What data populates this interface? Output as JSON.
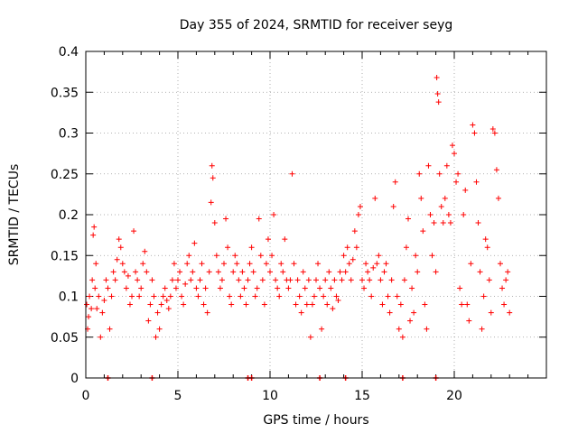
{
  "chart_data": {
    "type": "scatter",
    "title": "Day 355 of 2024, SRMTID for receiver seyg",
    "xlabel": "GPS time / hours",
    "ylabel": "SRMTID / TECUs",
    "xlim": [
      0,
      25
    ],
    "ylim": [
      0,
      0.4
    ],
    "x_ticks": [
      0,
      5,
      10,
      15,
      20
    ],
    "x_tick_labels": [
      "0",
      "5",
      "10",
      "15",
      "20"
    ],
    "y_ticks": [
      0,
      0.05,
      0.1,
      0.15,
      0.2,
      0.25,
      0.3,
      0.35,
      0.4
    ],
    "y_tick_labels": [
      "0",
      "0.05",
      "0.1",
      "0.15",
      "0.2",
      "0.25",
      "0.3",
      "0.35",
      "0.4"
    ],
    "grid": true,
    "marker": "+",
    "series": [
      {
        "name": "SRMTID",
        "color": "#ff0000",
        "points": [
          [
            0.05,
            0.09
          ],
          [
            0.1,
            0.06
          ],
          [
            0.15,
            0.075
          ],
          [
            0.2,
            0.1
          ],
          [
            0.3,
            0.085
          ],
          [
            0.35,
            0.12
          ],
          [
            0.4,
            0.175
          ],
          [
            0.45,
            0.185
          ],
          [
            0.5,
            0.11
          ],
          [
            0.55,
            0.14
          ],
          [
            0.6,
            0.085
          ],
          [
            0.7,
            0.1
          ],
          [
            0.8,
            0.05
          ],
          [
            0.9,
            0.08
          ],
          [
            1.0,
            0.095
          ],
          [
            1.1,
            0.12
          ],
          [
            1.2,
            0.11
          ],
          [
            1.3,
            0.06
          ],
          [
            1.4,
            0.1
          ],
          [
            1.5,
            0.13
          ],
          [
            1.6,
            0.12
          ],
          [
            1.7,
            0.145
          ],
          [
            1.8,
            0.17
          ],
          [
            1.9,
            0.16
          ],
          [
            2.0,
            0.14
          ],
          [
            2.1,
            0.13
          ],
          [
            2.2,
            0.11
          ],
          [
            2.3,
            0.125
          ],
          [
            2.4,
            0.09
          ],
          [
            2.5,
            0.1
          ],
          [
            2.6,
            0.18
          ],
          [
            2.7,
            0.13
          ],
          [
            2.8,
            0.12
          ],
          [
            2.9,
            0.1
          ],
          [
            3.0,
            0.11
          ],
          [
            3.1,
            0.14
          ],
          [
            3.2,
            0.155
          ],
          [
            3.3,
            0.13
          ],
          [
            3.4,
            0.07
          ],
          [
            3.5,
            0.09
          ],
          [
            3.6,
            0.12
          ],
          [
            3.7,
            0.1
          ],
          [
            3.8,
            0.05
          ],
          [
            3.9,
            0.08
          ],
          [
            4.0,
            0.06
          ],
          [
            4.1,
            0.09
          ],
          [
            4.2,
            0.1
          ],
          [
            4.3,
            0.11
          ],
          [
            4.4,
            0.095
          ],
          [
            4.5,
            0.085
          ],
          [
            4.6,
            0.1
          ],
          [
            4.7,
            0.12
          ],
          [
            4.8,
            0.14
          ],
          [
            4.9,
            0.11
          ],
          [
            5.0,
            0.12
          ],
          [
            5.1,
            0.13
          ],
          [
            5.2,
            0.1
          ],
          [
            5.3,
            0.09
          ],
          [
            5.4,
            0.115
          ],
          [
            5.5,
            0.14
          ],
          [
            5.6,
            0.15
          ],
          [
            5.7,
            0.12
          ],
          [
            5.8,
            0.13
          ],
          [
            5.9,
            0.165
          ],
          [
            6.0,
            0.11
          ],
          [
            6.1,
            0.1
          ],
          [
            6.2,
            0.12
          ],
          [
            6.3,
            0.14
          ],
          [
            6.4,
            0.09
          ],
          [
            6.5,
            0.11
          ],
          [
            6.6,
            0.08
          ],
          [
            6.7,
            0.13
          ],
          [
            6.8,
            0.215
          ],
          [
            6.85,
            0.26
          ],
          [
            6.9,
            0.245
          ],
          [
            7.0,
            0.19
          ],
          [
            7.1,
            0.15
          ],
          [
            7.2,
            0.13
          ],
          [
            7.3,
            0.11
          ],
          [
            7.4,
            0.12
          ],
          [
            7.5,
            0.14
          ],
          [
            7.6,
            0.195
          ],
          [
            7.7,
            0.16
          ],
          [
            7.8,
            0.1
          ],
          [
            7.9,
            0.09
          ],
          [
            8.0,
            0.13
          ],
          [
            8.1,
            0.15
          ],
          [
            8.2,
            0.14
          ],
          [
            8.3,
            0.12
          ],
          [
            8.4,
            0.1
          ],
          [
            8.5,
            0.13
          ],
          [
            8.6,
            0.11
          ],
          [
            8.7,
            0.09
          ],
          [
            8.8,
            0.12
          ],
          [
            8.9,
            0.14
          ],
          [
            9.0,
            0.16
          ],
          [
            9.1,
            0.13
          ],
          [
            9.2,
            0.1
          ],
          [
            9.3,
            0.11
          ],
          [
            9.4,
            0.195
          ],
          [
            9.5,
            0.15
          ],
          [
            9.6,
            0.12
          ],
          [
            9.7,
            0.09
          ],
          [
            9.8,
            0.14
          ],
          [
            9.9,
            0.17
          ],
          [
            10.0,
            0.13
          ],
          [
            10.1,
            0.15
          ],
          [
            10.2,
            0.2
          ],
          [
            10.3,
            0.12
          ],
          [
            10.4,
            0.11
          ],
          [
            10.5,
            0.1
          ],
          [
            10.6,
            0.14
          ],
          [
            10.7,
            0.13
          ],
          [
            10.8,
            0.17
          ],
          [
            10.9,
            0.12
          ],
          [
            11.0,
            0.11
          ],
          [
            11.1,
            0.12
          ],
          [
            11.2,
            0.25
          ],
          [
            11.3,
            0.14
          ],
          [
            11.4,
            0.09
          ],
          [
            11.5,
            0.12
          ],
          [
            11.6,
            0.1
          ],
          [
            11.7,
            0.08
          ],
          [
            11.8,
            0.13
          ],
          [
            11.9,
            0.11
          ],
          [
            12.0,
            0.09
          ],
          [
            12.1,
            0.12
          ],
          [
            12.2,
            0.05
          ],
          [
            12.3,
            0.09
          ],
          [
            12.4,
            0.1
          ],
          [
            12.5,
            0.12
          ],
          [
            12.6,
            0.14
          ],
          [
            12.7,
            0.11
          ],
          [
            12.8,
            0.06
          ],
          [
            12.9,
            0.1
          ],
          [
            13.0,
            0.12
          ],
          [
            13.1,
            0.09
          ],
          [
            13.2,
            0.13
          ],
          [
            13.3,
            0.11
          ],
          [
            13.4,
            0.085
          ],
          [
            13.5,
            0.12
          ],
          [
            13.6,
            0.1
          ],
          [
            13.7,
            0.095
          ],
          [
            13.8,
            0.13
          ],
          [
            13.9,
            0.12
          ],
          [
            14.0,
            0.15
          ],
          [
            14.1,
            0.13
          ],
          [
            14.2,
            0.16
          ],
          [
            14.3,
            0.14
          ],
          [
            14.4,
            0.12
          ],
          [
            14.5,
            0.145
          ],
          [
            14.6,
            0.18
          ],
          [
            14.7,
            0.16
          ],
          [
            14.8,
            0.2
          ],
          [
            14.9,
            0.21
          ],
          [
            15.0,
            0.12
          ],
          [
            15.1,
            0.11
          ],
          [
            15.2,
            0.14
          ],
          [
            15.3,
            0.13
          ],
          [
            15.4,
            0.12
          ],
          [
            15.5,
            0.1
          ],
          [
            15.6,
            0.135
          ],
          [
            15.7,
            0.22
          ],
          [
            15.8,
            0.14
          ],
          [
            15.9,
            0.15
          ],
          [
            16.0,
            0.12
          ],
          [
            16.1,
            0.09
          ],
          [
            16.2,
            0.13
          ],
          [
            16.3,
            0.14
          ],
          [
            16.4,
            0.1
          ],
          [
            16.5,
            0.08
          ],
          [
            16.6,
            0.12
          ],
          [
            16.7,
            0.21
          ],
          [
            16.8,
            0.24
          ],
          [
            16.9,
            0.1
          ],
          [
            17.0,
            0.06
          ],
          [
            17.1,
            0.09
          ],
          [
            17.2,
            0.05
          ],
          [
            17.3,
            0.12
          ],
          [
            17.4,
            0.16
          ],
          [
            17.5,
            0.195
          ],
          [
            17.6,
            0.07
          ],
          [
            17.7,
            0.11
          ],
          [
            17.8,
            0.08
          ],
          [
            17.9,
            0.15
          ],
          [
            18.0,
            0.13
          ],
          [
            18.1,
            0.25
          ],
          [
            18.2,
            0.22
          ],
          [
            18.3,
            0.18
          ],
          [
            18.4,
            0.09
          ],
          [
            18.5,
            0.06
          ],
          [
            18.6,
            0.26
          ],
          [
            18.7,
            0.2
          ],
          [
            18.8,
            0.15
          ],
          [
            18.9,
            0.19
          ],
          [
            19.0,
            0.13
          ],
          [
            19.05,
            0.368
          ],
          [
            19.1,
            0.348
          ],
          [
            19.15,
            0.338
          ],
          [
            19.2,
            0.25
          ],
          [
            19.3,
            0.21
          ],
          [
            19.4,
            0.19
          ],
          [
            19.5,
            0.22
          ],
          [
            19.6,
            0.26
          ],
          [
            19.7,
            0.2
          ],
          [
            19.8,
            0.19
          ],
          [
            19.9,
            0.285
          ],
          [
            20.0,
            0.275
          ],
          [
            20.1,
            0.24
          ],
          [
            20.2,
            0.25
          ],
          [
            20.3,
            0.11
          ],
          [
            20.4,
            0.09
          ],
          [
            20.5,
            0.2
          ],
          [
            20.6,
            0.23
          ],
          [
            20.7,
            0.09
          ],
          [
            20.8,
            0.07
          ],
          [
            20.9,
            0.14
          ],
          [
            21.0,
            0.31
          ],
          [
            21.1,
            0.3
          ],
          [
            21.2,
            0.24
          ],
          [
            21.3,
            0.19
          ],
          [
            21.4,
            0.13
          ],
          [
            21.5,
            0.06
          ],
          [
            21.6,
            0.1
          ],
          [
            21.7,
            0.17
          ],
          [
            21.8,
            0.16
          ],
          [
            21.9,
            0.12
          ],
          [
            22.0,
            0.08
          ],
          [
            22.1,
            0.305
          ],
          [
            22.2,
            0.3
          ],
          [
            22.3,
            0.255
          ],
          [
            22.4,
            0.22
          ],
          [
            22.5,
            0.14
          ],
          [
            22.6,
            0.11
          ],
          [
            22.7,
            0.09
          ],
          [
            22.8,
            0.12
          ],
          [
            22.9,
            0.13
          ],
          [
            23.0,
            0.08
          ]
        ]
      }
    ],
    "zero_markers": [
      1.2,
      3.6,
      8.8,
      9.0,
      12.7,
      14.1,
      17.2,
      19.0
    ]
  }
}
